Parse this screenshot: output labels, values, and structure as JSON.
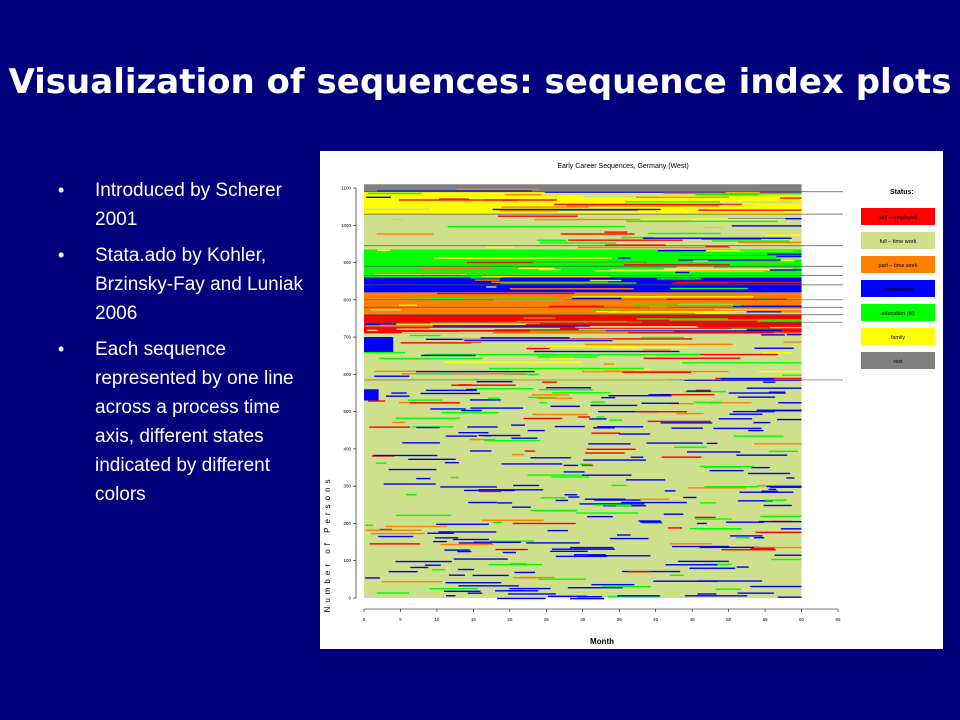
{
  "slide": {
    "title": "Visualization of sequences: sequence index plots",
    "bullets": [
      "Introduced by Scherer 2001",
      "Stata.ado by Kohler, Brzinsky-Fay and Luniak 2006",
      "Each sequence represented by one line across a process time axis, different states indicated by different colors"
    ],
    "bullet_glyph": "•"
  },
  "chart_data": {
    "type": "heatmap",
    "title": "Early Career Sequences, Germany (West)",
    "xlabel": "Month",
    "ylabel": "Number of Persons",
    "xlim": [
      0,
      65
    ],
    "ylim": [
      0,
      1100
    ],
    "x_ticks": [
      0,
      5,
      10,
      15,
      20,
      25,
      30,
      35,
      40,
      45,
      50,
      55,
      60,
      65
    ],
    "y_ticks": [
      0,
      100,
      200,
      300,
      400,
      500,
      600,
      700,
      800,
      900,
      1000,
      1100
    ],
    "grid": false,
    "legend": {
      "title": "Status:",
      "placement": "right",
      "entries": [
        {
          "label": "self – employed",
          "color": "#ff0000"
        },
        {
          "label": "full – time work",
          "color": "#cfe08c"
        },
        {
          "label": "part – time work",
          "color": "#ff7f00"
        },
        {
          "label": "unemployed",
          "color": "#0000ff"
        },
        {
          "label": "education (fit)",
          "color": "#00ff00"
        },
        {
          "label": "family",
          "color": "#ffff00"
        },
        {
          "label": "rest",
          "color": "#808080"
        }
      ]
    },
    "bands": [
      {
        "from": 0,
        "to": 585,
        "state": "full – time work"
      },
      {
        "from": 585,
        "to": 660,
        "state": "full – time work"
      },
      {
        "from": 660,
        "to": 710,
        "state": "full – time work"
      },
      {
        "from": 710,
        "to": 760,
        "state": "self – employed"
      },
      {
        "from": 760,
        "to": 800,
        "state": "part – time work"
      },
      {
        "from": 800,
        "to": 820,
        "state": "part – time work"
      },
      {
        "from": 820,
        "to": 860,
        "state": "unemployed"
      },
      {
        "from": 860,
        "to": 935,
        "state": "education (fit)"
      },
      {
        "from": 935,
        "to": 1030,
        "state": "full – time work"
      },
      {
        "from": 1030,
        "to": 1090,
        "state": "family"
      },
      {
        "from": 1090,
        "to": 1110,
        "state": "rest"
      }
    ],
    "separator_lines": [
      585,
      740,
      760,
      780,
      800,
      840,
      865,
      890,
      945,
      1030,
      1090
    ]
  }
}
